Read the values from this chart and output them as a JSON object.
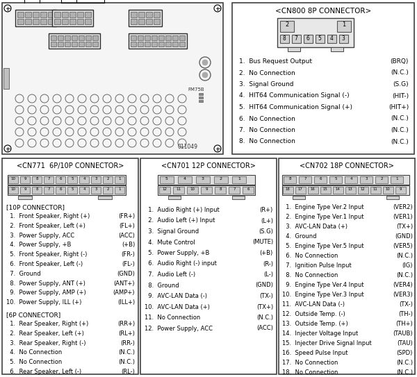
{
  "bg_color": "#ffffff",
  "cn800_title": "<CN800 8P CONNECTOR>",
  "cn800_pins_left": [
    "1.  Bus Request Output",
    "2.  No Connection",
    "3.  Signal Ground",
    "4.  HIT64 Communication Signal (-)",
    "5.  HIT64 Communication Signal (+)",
    "6.  No Connection",
    "7.  No Connection",
    "8.  No Connection"
  ],
  "cn800_pins_right": [
    "(BRQ)",
    "(N.C.)",
    "(S.G)",
    "(HIT-)",
    "(HIT+)",
    "(N.C.)",
    "(N.C.)",
    "(N.C.)"
  ],
  "cn771_title": "<CN771  6P/10P CONNECTOR>",
  "cn771_10p_header": "[10P CONNECTOR]",
  "cn771_10p_left": [
    "  1.  Front Speaker, Right (+)",
    "  2.  Front Speaker, Left (+)",
    "  3.  Power Supply, ACC",
    "  4.  Power Supply, +B",
    "  5.  Front Speaker, Right (-)",
    "  6.  Front Speaker, Left (-)",
    "  7.  Ground",
    "  8.  Power Supply, ANT (+)",
    "  9.  Power Supply, AMP (+)",
    "10.  Power Supply, ILL (+)"
  ],
  "cn771_10p_right": [
    "(FR+)",
    "(FL+)",
    "(ACC)",
    "(+B)",
    "(FR-)",
    "(FL-)",
    "(GND)",
    "(ANT+)",
    "(AMP+)",
    "(ILL+)"
  ],
  "cn771_6p_header": "[6P CONNECTOR]",
  "cn771_6p_left": [
    "  1.  Rear Speaker, Right (+)",
    "  2.  Rear Speaker, Left (+)",
    "  3.  Rear Speaker, Right (-)",
    "  4.  No Connection",
    "  5.  No Connection",
    "  6.  Rear Speaker, Left (-)"
  ],
  "cn771_6p_right": [
    "(RR+)",
    "(RL+)",
    "(RR-)",
    "(N.C.)",
    "(N.C.)",
    "(RL-)"
  ],
  "cn701_title": "<CN701 12P CONNECTOR>",
  "cn701_left": [
    "  1.  Audio Right (+) Input",
    "  2.  Audio Left (+) Input",
    "  3.  Signal Ground",
    "  4.  Mute Control",
    "  5.  Power Supply, +B",
    "  6.  Audio Right (-) input",
    "  7.  Audio Left (-)",
    "  8.  Ground",
    "  9.  AVC-LAN Data (-)",
    "10.  AVC-LAN Data (+)",
    "11.  No Connection",
    "12.  Power Supply, ACC"
  ],
  "cn701_right": [
    "(R+)",
    "(L+)",
    "(S.G)",
    "(MUTE)",
    "(+B)",
    "(R-)",
    "(L-)",
    "(GND)",
    "(TX-)",
    "(TX+)",
    "(N.C.)",
    "(ACC)"
  ],
  "cn702_title": "<CN702 18P CONNECTOR>",
  "cn702_left": [
    "  1.  Engine Type Ver.2 Input",
    "  2.  Engine Type Ver.1 Input",
    "  3.  AVC-LAN Data (+)",
    "  4.  Ground",
    "  5.  Engine Type Ver.5 Input",
    "  6.  No Connection",
    "  7.  Ignition Pulse Input",
    "  8.  No Connection",
    "  9.  Engine Type Ver.4 Input",
    "10.  Engine Type Ver.3 Input",
    "11.  AVC-LAN Data (-)",
    "12.  Outside Temp. (-)",
    "13.  Outside Temp. (+)",
    "14.  Injecter Voltage Input",
    "15.  Injecter Drive Signal Input",
    "16.  Speed Pulse Input",
    "17.  No Connection",
    "18.  No Connection"
  ],
  "cn702_right": [
    "(VER2)",
    "(VER1)",
    "(TX+)",
    "(GND)",
    "(VER5)",
    "(N.C.)",
    "(IG)",
    "(N.C.)",
    "(VER4)",
    "(VER3)",
    "(TX-)",
    "(TH-)",
    "(TH+)",
    "(TAUB)",
    "(TAU)",
    "(SPD)",
    "(N.C.)",
    "(N.C.)"
  ]
}
